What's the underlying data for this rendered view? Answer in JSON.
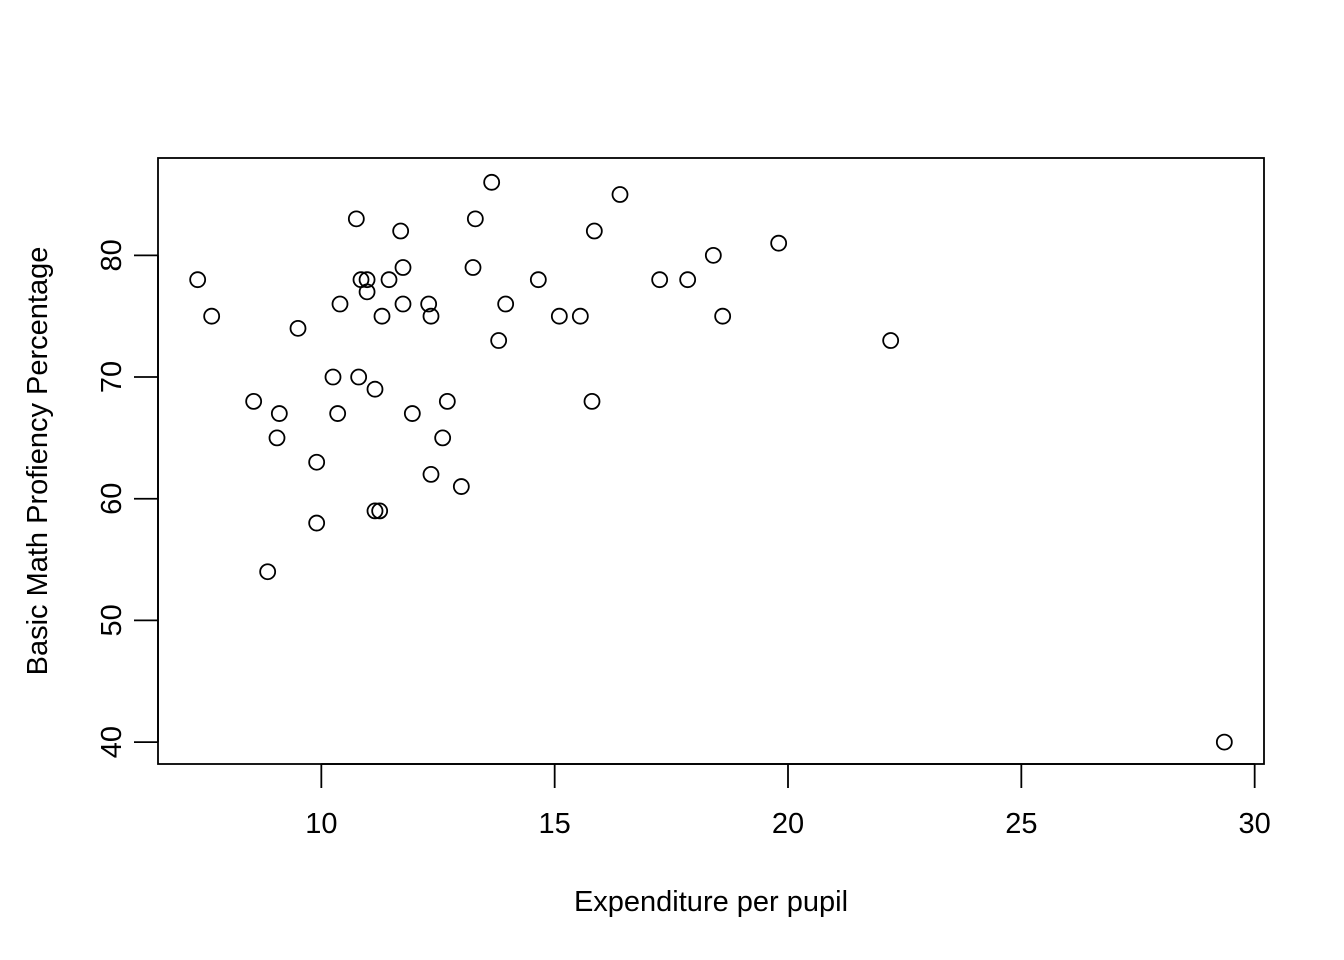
{
  "chart_data": {
    "type": "scatter",
    "title": "",
    "xlabel": "Expenditure per pupil",
    "ylabel": "Basic Math Profiency Percentage",
    "xlim": [
      6.5,
      30.2
    ],
    "ylim": [
      38.2,
      88.0
    ],
    "x_ticks": [
      10,
      15,
      20,
      25,
      30
    ],
    "y_ticks": [
      40,
      50,
      60,
      70,
      80
    ],
    "x_tick_labels": [
      "10",
      "15",
      "20",
      "25",
      "30"
    ],
    "y_tick_labels": [
      "40",
      "50",
      "60",
      "70",
      "80"
    ],
    "grid": false,
    "legend": "none",
    "marker": "open-circle",
    "points": [
      {
        "x": 7.35,
        "y": 78
      },
      {
        "x": 7.65,
        "y": 75
      },
      {
        "x": 8.55,
        "y": 68
      },
      {
        "x": 8.85,
        "y": 54
      },
      {
        "x": 9.1,
        "y": 67
      },
      {
        "x": 9.05,
        "y": 65
      },
      {
        "x": 9.5,
        "y": 74
      },
      {
        "x": 9.9,
        "y": 63
      },
      {
        "x": 9.9,
        "y": 58
      },
      {
        "x": 10.25,
        "y": 70
      },
      {
        "x": 10.35,
        "y": 67
      },
      {
        "x": 10.4,
        "y": 76
      },
      {
        "x": 10.75,
        "y": 83
      },
      {
        "x": 10.8,
        "y": 70
      },
      {
        "x": 10.85,
        "y": 78
      },
      {
        "x": 10.98,
        "y": 78
      },
      {
        "x": 10.98,
        "y": 77
      },
      {
        "x": 11.15,
        "y": 69
      },
      {
        "x": 11.15,
        "y": 59
      },
      {
        "x": 11.25,
        "y": 59
      },
      {
        "x": 11.3,
        "y": 75
      },
      {
        "x": 11.45,
        "y": 78
      },
      {
        "x": 11.7,
        "y": 82
      },
      {
        "x": 11.75,
        "y": 79
      },
      {
        "x": 11.75,
        "y": 76
      },
      {
        "x": 11.95,
        "y": 67
      },
      {
        "x": 12.3,
        "y": 76
      },
      {
        "x": 12.35,
        "y": 75
      },
      {
        "x": 12.35,
        "y": 62
      },
      {
        "x": 12.6,
        "y": 65
      },
      {
        "x": 12.7,
        "y": 68
      },
      {
        "x": 13.0,
        "y": 61
      },
      {
        "x": 13.25,
        "y": 79
      },
      {
        "x": 13.3,
        "y": 83
      },
      {
        "x": 13.65,
        "y": 86
      },
      {
        "x": 13.8,
        "y": 73
      },
      {
        "x": 13.95,
        "y": 76
      },
      {
        "x": 14.65,
        "y": 78
      },
      {
        "x": 15.1,
        "y": 75
      },
      {
        "x": 15.55,
        "y": 75
      },
      {
        "x": 15.8,
        "y": 68
      },
      {
        "x": 15.85,
        "y": 82
      },
      {
        "x": 16.4,
        "y": 85
      },
      {
        "x": 17.25,
        "y": 78
      },
      {
        "x": 17.85,
        "y": 78
      },
      {
        "x": 18.4,
        "y": 80
      },
      {
        "x": 18.6,
        "y": 75
      },
      {
        "x": 19.8,
        "y": 81
      },
      {
        "x": 22.2,
        "y": 73
      },
      {
        "x": 29.35,
        "y": 40
      }
    ]
  }
}
